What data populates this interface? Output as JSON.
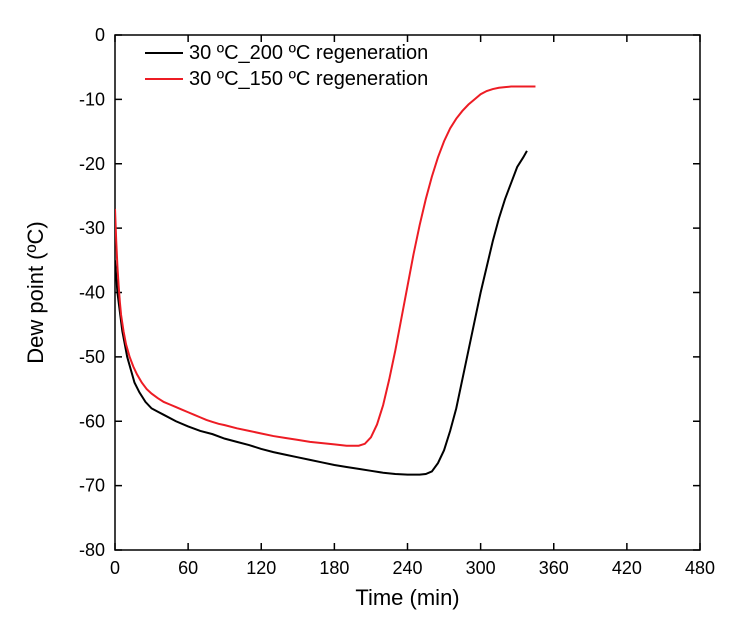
{
  "chart": {
    "type": "line",
    "background_color": "#ffffff",
    "x_axis": {
      "label": "Time (min)",
      "min": 0,
      "max": 480,
      "tick_step": 60,
      "ticks": [
        0,
        60,
        120,
        180,
        240,
        300,
        360,
        420,
        480
      ],
      "label_fontsize": 22,
      "tick_fontsize": 18
    },
    "y_axis": {
      "label": "Dew point (ºC)",
      "min": -80,
      "max": 0,
      "tick_step": 10,
      "ticks": [
        0,
        -10,
        -20,
        -30,
        -40,
        -50,
        -60,
        -70,
        -80
      ],
      "label_fontsize": 22,
      "tick_fontsize": 18
    },
    "legend": {
      "position": "top-left-inside",
      "items": [
        {
          "label": " 30 ºC_200 ºC regeneration",
          "color": "#000000"
        },
        {
          "label": " 30 ºC_150 ºC regeneration",
          "color": "#ed1c24"
        }
      ]
    },
    "series": [
      {
        "name": "30C_200C_regen",
        "color": "#000000",
        "line_width": 2,
        "data": [
          [
            0,
            -35
          ],
          [
            2,
            -40
          ],
          [
            4,
            -43
          ],
          [
            6,
            -46
          ],
          [
            8,
            -48
          ],
          [
            10,
            -50
          ],
          [
            13,
            -52
          ],
          [
            16,
            -54
          ],
          [
            20,
            -55.5
          ],
          [
            25,
            -57
          ],
          [
            30,
            -58
          ],
          [
            35,
            -58.5
          ],
          [
            40,
            -59
          ],
          [
            50,
            -60
          ],
          [
            60,
            -60.8
          ],
          [
            70,
            -61.5
          ],
          [
            80,
            -62
          ],
          [
            90,
            -62.7
          ],
          [
            100,
            -63.2
          ],
          [
            110,
            -63.7
          ],
          [
            120,
            -64.3
          ],
          [
            130,
            -64.8
          ],
          [
            140,
            -65.2
          ],
          [
            150,
            -65.6
          ],
          [
            160,
            -66
          ],
          [
            170,
            -66.4
          ],
          [
            180,
            -66.8
          ],
          [
            190,
            -67.1
          ],
          [
            200,
            -67.4
          ],
          [
            210,
            -67.7
          ],
          [
            220,
            -68
          ],
          [
            230,
            -68.2
          ],
          [
            240,
            -68.3
          ],
          [
            250,
            -68.3
          ],
          [
            255,
            -68.2
          ],
          [
            260,
            -67.8
          ],
          [
            265,
            -66.5
          ],
          [
            270,
            -64.5
          ],
          [
            275,
            -61.5
          ],
          [
            280,
            -58
          ],
          [
            285,
            -53.5
          ],
          [
            290,
            -49
          ],
          [
            295,
            -44.5
          ],
          [
            300,
            -40
          ],
          [
            305,
            -36
          ],
          [
            310,
            -32
          ],
          [
            315,
            -28.5
          ],
          [
            320,
            -25.5
          ],
          [
            325,
            -23
          ],
          [
            330,
            -20.5
          ],
          [
            335,
            -19
          ],
          [
            338,
            -18
          ]
        ]
      },
      {
        "name": "30C_150C_regen",
        "color": "#ed1c24",
        "line_width": 2,
        "data": [
          [
            0,
            -27
          ],
          [
            1,
            -32
          ],
          [
            2,
            -36
          ],
          [
            3,
            -39
          ],
          [
            4,
            -41.5
          ],
          [
            5,
            -43.5
          ],
          [
            7,
            -46
          ],
          [
            9,
            -48
          ],
          [
            12,
            -50
          ],
          [
            15,
            -51.5
          ],
          [
            18,
            -52.7
          ],
          [
            22,
            -54
          ],
          [
            26,
            -55
          ],
          [
            30,
            -55.7
          ],
          [
            35,
            -56.4
          ],
          [
            40,
            -57
          ],
          [
            45,
            -57.4
          ],
          [
            50,
            -57.8
          ],
          [
            55,
            -58.2
          ],
          [
            60,
            -58.6
          ],
          [
            65,
            -59
          ],
          [
            70,
            -59.4
          ],
          [
            75,
            -59.8
          ],
          [
            80,
            -60.1
          ],
          [
            85,
            -60.4
          ],
          [
            90,
            -60.6
          ],
          [
            100,
            -61.1
          ],
          [
            110,
            -61.5
          ],
          [
            120,
            -61.9
          ],
          [
            130,
            -62.3
          ],
          [
            140,
            -62.6
          ],
          [
            150,
            -62.9
          ],
          [
            160,
            -63.2
          ],
          [
            170,
            -63.4
          ],
          [
            180,
            -63.6
          ],
          [
            190,
            -63.8
          ],
          [
            200,
            -63.8
          ],
          [
            205,
            -63.5
          ],
          [
            210,
            -62.5
          ],
          [
            215,
            -60.5
          ],
          [
            220,
            -57.5
          ],
          [
            225,
            -53.5
          ],
          [
            230,
            -49
          ],
          [
            235,
            -44
          ],
          [
            240,
            -39
          ],
          [
            245,
            -34
          ],
          [
            250,
            -29.5
          ],
          [
            255,
            -25.5
          ],
          [
            260,
            -22
          ],
          [
            265,
            -19
          ],
          [
            270,
            -16.5
          ],
          [
            275,
            -14.5
          ],
          [
            280,
            -13
          ],
          [
            285,
            -11.8
          ],
          [
            290,
            -10.8
          ],
          [
            295,
            -10
          ],
          [
            300,
            -9.2
          ],
          [
            305,
            -8.7
          ],
          [
            310,
            -8.4
          ],
          [
            315,
            -8.2
          ],
          [
            320,
            -8.1
          ],
          [
            325,
            -8
          ],
          [
            330,
            -8
          ],
          [
            335,
            -8
          ],
          [
            340,
            -8
          ],
          [
            345,
            -8
          ]
        ]
      }
    ]
  }
}
